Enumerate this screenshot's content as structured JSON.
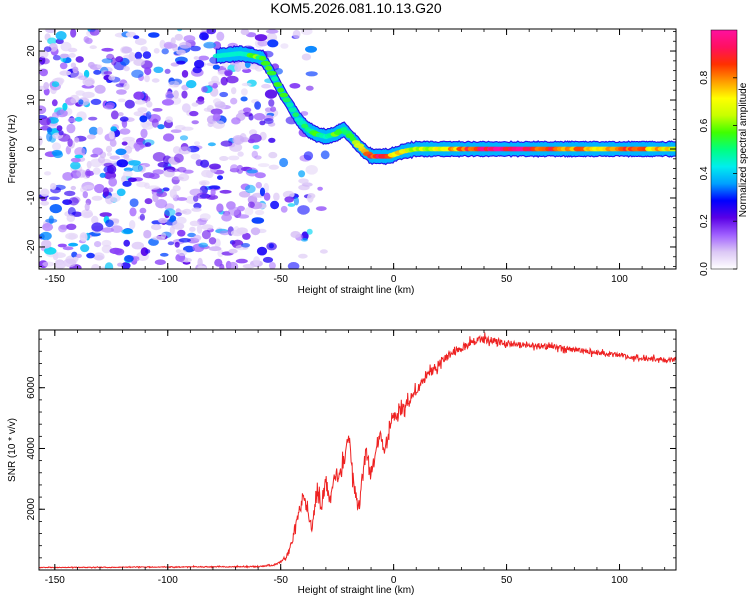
{
  "title": "KOM5.2026.081.10.13.G20",
  "chart_data": [
    {
      "type": "heatmap",
      "name": "spectrogram",
      "xlabel": "Height of straight line (km)",
      "ylabel": "Frequency (Hz)",
      "xlim": [
        -157,
        125
      ],
      "ylim": [
        -24.5,
        24.5
      ],
      "xticks": [
        -150,
        -100,
        -50,
        0,
        50,
        100
      ],
      "xtick_labels": [
        "-150",
        "-100",
        "-50",
        "0",
        "50",
        "100"
      ],
      "yticks": [
        -20,
        -10,
        0,
        10,
        20
      ],
      "ytick_labels": [
        "-20",
        "-10",
        "0",
        "10",
        "20"
      ],
      "noise_region": {
        "x_range": [
          -157,
          -52
        ],
        "y_range": [
          -24.5,
          24.5
        ],
        "amplitude": "0.0-0.25"
      },
      "ridge": {
        "description": "dominant frequency track",
        "x": [
          -78,
          -68,
          -62,
          -58,
          -54,
          -50,
          -46,
          -42,
          -38,
          -34,
          -30,
          -26,
          -22,
          -18,
          -14,
          -10,
          -6,
          -2,
          4,
          10,
          20,
          30,
          40,
          50,
          60,
          70,
          80,
          90,
          100,
          110,
          125
        ],
        "y": [
          19,
          19.5,
          19,
          18.5,
          15.5,
          12,
          9,
          6,
          4,
          3,
          2.5,
          3,
          4,
          2,
          0,
          -1.5,
          -1.5,
          -1.5,
          -0.5,
          0,
          0,
          0,
          0,
          0,
          0,
          0,
          0,
          0,
          0,
          0,
          0
        ],
        "amplitude": [
          0.2,
          0.4,
          0.6,
          0.55,
          0.5,
          0.55,
          0.5,
          0.45,
          0.5,
          0.55,
          0.5,
          0.55,
          0.55,
          0.6,
          0.7,
          0.85,
          0.9,
          0.8,
          0.75,
          0.65,
          0.7,
          0.8,
          0.95,
          0.95,
          0.9,
          0.85,
          0.8,
          0.75,
          0.85,
          0.8,
          0.7
        ]
      }
    },
    {
      "type": "line",
      "name": "snr",
      "xlabel": "Height of straight line (km)",
      "ylabel": "SNR (10 * v/v)",
      "color": "#ee2222",
      "xlim": [
        -157,
        125
      ],
      "ylim": [
        0,
        7900
      ],
      "xticks": [
        -150,
        -100,
        -50,
        0,
        50,
        100
      ],
      "xtick_labels": [
        "-150",
        "-100",
        "-50",
        "0",
        "50",
        "100"
      ],
      "yticks": [
        2000,
        4000,
        6000
      ],
      "ytick_labels": [
        "2000",
        "4000",
        "6000"
      ],
      "series": [
        {
          "name": "SNR",
          "x": [
            -157,
            -100,
            -60,
            -52,
            -48,
            -45,
            -42,
            -40,
            -38,
            -36,
            -34,
            -32,
            -30,
            -28,
            -26,
            -24,
            -22,
            -20,
            -18,
            -16,
            -15,
            -14,
            -12,
            -10,
            -8,
            -6,
            -4,
            -2,
            0,
            5,
            10,
            15,
            20,
            25,
            30,
            35,
            40,
            45,
            50,
            60,
            70,
            80,
            90,
            100,
            110,
            125
          ],
          "y": [
            80,
            100,
            110,
            180,
            350,
            900,
            1800,
            2600,
            1900,
            1300,
            2700,
            2000,
            2900,
            2300,
            3200,
            3000,
            3600,
            4600,
            3000,
            2100,
            2000,
            3200,
            3900,
            3100,
            3800,
            4400,
            4000,
            4700,
            5000,
            5400,
            5900,
            6400,
            6800,
            7100,
            7300,
            7500,
            7600,
            7550,
            7450,
            7400,
            7350,
            7250,
            7150,
            7050,
            6950,
            6900
          ],
          "noise": [
            20,
            30,
            30,
            60,
            150,
            400,
            500,
            500,
            450,
            450,
            500,
            450,
            500,
            450,
            500,
            450,
            500,
            500,
            450,
            400,
            400,
            450,
            450,
            450,
            450,
            450,
            400,
            400,
            350,
            350,
            300,
            300,
            300,
            250,
            250,
            250,
            250,
            220,
            200,
            200,
            180,
            180,
            170,
            160,
            160,
            160
          ]
        }
      ]
    },
    {
      "type": "colorbar",
      "name": "amplitude-colorbar",
      "label": "Normalized spectral amplitude",
      "range": [
        0,
        1
      ],
      "ticks": [
        0.0,
        0.2,
        0.4,
        0.6,
        0.8
      ],
      "tick_labels": [
        "0.0",
        "0.2",
        "0.4",
        "0.6",
        "0.8"
      ],
      "colormap": [
        "#ffffff",
        "#dcc8f5",
        "#a060ff",
        "#5a00e6",
        "#0000ff",
        "#00a0ff",
        "#00eeee",
        "#00ff80",
        "#40ff00",
        "#c8ff00",
        "#ffff00",
        "#ff9a00",
        "#ff3000",
        "#ff1060",
        "#ff10a0"
      ]
    }
  ]
}
